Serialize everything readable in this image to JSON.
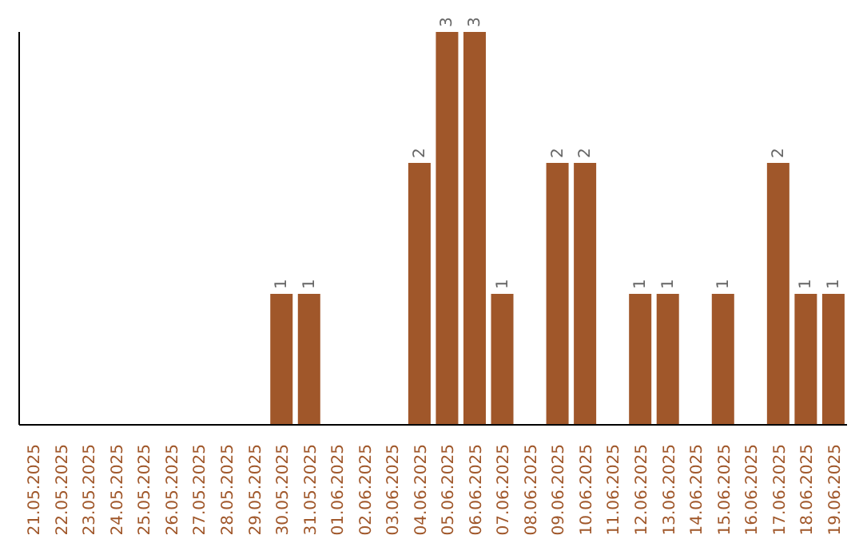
{
  "chart_data": {
    "type": "bar",
    "categories": [
      "21.05.2025",
      "22.05.2025",
      "23.05.2025",
      "24.05.2025",
      "25.05.2025",
      "26.05.2025",
      "27.05.2025",
      "28.05.2025",
      "29.05.2025",
      "30.05.2025",
      "31.05.2025",
      "01.06.2025",
      "02.06.2025",
      "03.06.2025",
      "04.06.2025",
      "05.06.2025",
      "06.06.2025",
      "07.06.2025",
      "08.06.2025",
      "09.06.2025",
      "10.06.2025",
      "11.06.2025",
      "12.06.2025",
      "13.06.2025",
      "14.06.2025",
      "15.06.2025",
      "16.06.2025",
      "17.06.2025",
      "18.06.2025",
      "19.06.2025"
    ],
    "values": [
      0,
      0,
      0,
      0,
      0,
      0,
      0,
      0,
      0,
      1,
      1,
      0,
      0,
      0,
      2,
      3,
      3,
      1,
      0,
      2,
      2,
      0,
      1,
      1,
      0,
      1,
      0,
      2,
      1,
      1
    ],
    "value_labels": [
      null,
      null,
      null,
      null,
      null,
      null,
      null,
      null,
      null,
      "1",
      "1",
      null,
      null,
      null,
      "2",
      "3",
      "3",
      "1",
      null,
      "2",
      "2",
      null,
      "1",
      "1",
      null,
      "1",
      null,
      "2",
      "1",
      "1"
    ],
    "color": "#a0572a",
    "grid": false,
    "legend": false
  }
}
